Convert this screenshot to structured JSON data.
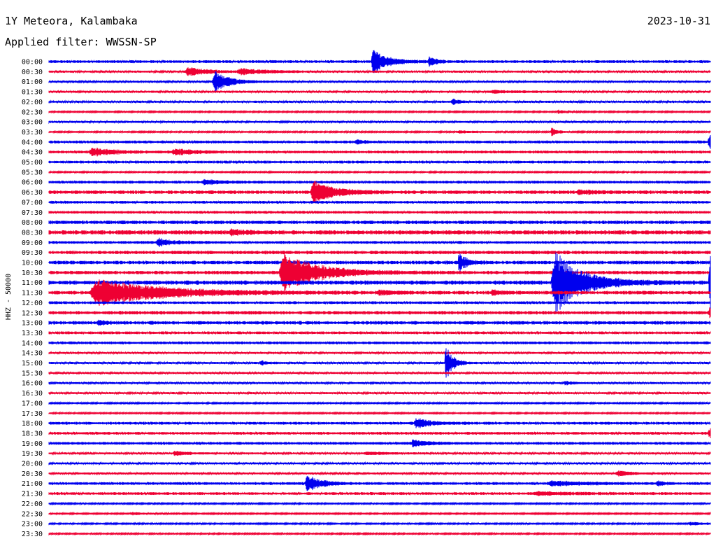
{
  "header": {
    "station": "1Y Meteora, Kalambaka",
    "date": "2023-10-31",
    "filter": "Applied filter: WWSSN-SP"
  },
  "chart_data": {
    "type": "line",
    "title": "1Y Meteora, Kalambaka",
    "subtitle": "Applied filter: WWSSN-SP",
    "ylabel": "HHZ - 50000",
    "xlabel": "",
    "colors": [
      "#0000ee",
      "#ee0033"
    ],
    "row_labels": [
      "00:00",
      "00:30",
      "01:00",
      "01:30",
      "02:00",
      "02:30",
      "03:00",
      "03:30",
      "04:00",
      "04:30",
      "05:00",
      "05:30",
      "06:00",
      "06:30",
      "07:00",
      "07:30",
      "08:00",
      "08:30",
      "09:00",
      "09:30",
      "10:00",
      "10:30",
      "11:00",
      "11:30",
      "12:00",
      "12:30",
      "13:00",
      "13:30",
      "14:00",
      "14:30",
      "15:00",
      "15:30",
      "16:00",
      "16:30",
      "17:00",
      "17:30",
      "18:00",
      "18:30",
      "19:00",
      "19:30",
      "20:00",
      "20:30",
      "21:00",
      "21:30",
      "22:00",
      "22:30",
      "23:00",
      "23:30"
    ],
    "noise_levels": [
      2,
      1.5,
      1.5,
      1.5,
      1.5,
      1,
      1.5,
      1,
      2,
      2,
      2,
      1,
      2,
      2.5,
      2,
      2,
      2.5,
      3,
      2,
      2.5,
      2.5,
      2.5,
      3,
      2.5,
      2,
      2.5,
      2.5,
      2,
      2,
      1.5,
      1.5,
      1.5,
      1.5,
      1.5,
      1,
      1,
      2,
      2,
      2,
      1.5,
      1.5,
      1.5,
      2,
      2,
      1,
      1,
      1,
      1
    ],
    "events": [
      {
        "row": 0,
        "t": 0.49,
        "amp": 18,
        "dur": 0.02
      },
      {
        "row": 0,
        "t": 0.575,
        "amp": 7,
        "dur": 0.01
      },
      {
        "row": 1,
        "t": 0.21,
        "amp": 6,
        "dur": 0.03
      },
      {
        "row": 1,
        "t": 0.29,
        "amp": 4,
        "dur": 0.04
      },
      {
        "row": 2,
        "t": 0.25,
        "amp": 17,
        "dur": 0.02
      },
      {
        "row": 3,
        "t": 0.67,
        "amp": 2,
        "dur": 0.05
      },
      {
        "row": 4,
        "t": 0.61,
        "amp": 4,
        "dur": 0.01
      },
      {
        "row": 5,
        "t": 0.77,
        "amp": 3,
        "dur": 0.01
      },
      {
        "row": 7,
        "t": 0.76,
        "amp": 6,
        "dur": 0.01
      },
      {
        "row": 7,
        "t": 0.62,
        "amp": 2,
        "dur": 0.03
      },
      {
        "row": 8,
        "t": 1.0,
        "amp": 12,
        "dur": 0.03
      },
      {
        "row": 8,
        "t": 0.465,
        "amp": 3,
        "dur": 0.01
      },
      {
        "row": 9,
        "t": 0.065,
        "amp": 6,
        "dur": 0.03
      },
      {
        "row": 9,
        "t": 0.19,
        "amp": 4,
        "dur": 0.03
      },
      {
        "row": 12,
        "t": 0.235,
        "amp": 4,
        "dur": 0.02
      },
      {
        "row": 13,
        "t": 0.4,
        "amp": 16,
        "dur": 0.03
      },
      {
        "row": 13,
        "t": 0.8,
        "amp": 3,
        "dur": 0.02
      },
      {
        "row": 17,
        "t": 0.275,
        "amp": 4,
        "dur": 0.02
      },
      {
        "row": 18,
        "t": 0.165,
        "amp": 6,
        "dur": 0.02
      },
      {
        "row": 20,
        "t": 0.62,
        "amp": 16,
        "dur": 0.01
      },
      {
        "row": 21,
        "t": 0.355,
        "amp": 28,
        "dur": 0.05
      },
      {
        "row": 22,
        "t": 0.765,
        "amp": 45,
        "dur": 0.04
      },
      {
        "row": 22,
        "t": 1.0,
        "amp": 40,
        "dur": 0.02
      },
      {
        "row": 23,
        "t": 0.075,
        "amp": 20,
        "dur": 0.09
      },
      {
        "row": 23,
        "t": 0.5,
        "amp": 3,
        "dur": 0.02
      },
      {
        "row": 23,
        "t": 0.67,
        "amp": 3,
        "dur": 0.02
      },
      {
        "row": 25,
        "t": 1.0,
        "amp": 8,
        "dur": 0.03
      },
      {
        "row": 26,
        "t": 0.075,
        "amp": 3,
        "dur": 0.01
      },
      {
        "row": 30,
        "t": 0.6,
        "amp": 28,
        "dur": 0.01
      },
      {
        "row": 30,
        "t": 0.32,
        "amp": 3,
        "dur": 0.01
      },
      {
        "row": 32,
        "t": 0.78,
        "amp": 3,
        "dur": 0.01
      },
      {
        "row": 36,
        "t": 0.555,
        "amp": 7,
        "dur": 0.02
      },
      {
        "row": 37,
        "t": 1.0,
        "amp": 6,
        "dur": 0.03
      },
      {
        "row": 38,
        "t": 0.55,
        "amp": 5,
        "dur": 0.02
      },
      {
        "row": 39,
        "t": 0.19,
        "amp": 3,
        "dur": 0.02
      },
      {
        "row": 39,
        "t": 0.48,
        "amp": 2,
        "dur": 0.03
      },
      {
        "row": 41,
        "t": 0.86,
        "amp": 4,
        "dur": 0.02
      },
      {
        "row": 42,
        "t": 0.39,
        "amp": 12,
        "dur": 0.02
      },
      {
        "row": 42,
        "t": 0.76,
        "amp": 3,
        "dur": 0.05
      },
      {
        "row": 42,
        "t": 0.92,
        "amp": 3,
        "dur": 0.01
      },
      {
        "row": 43,
        "t": 0.74,
        "amp": 2,
        "dur": 0.05
      },
      {
        "row": 45,
        "t": 0.125,
        "amp": 2,
        "dur": 0.02
      },
      {
        "row": 46,
        "t": 0.97,
        "amp": 2,
        "dur": 0.03
      }
    ]
  }
}
